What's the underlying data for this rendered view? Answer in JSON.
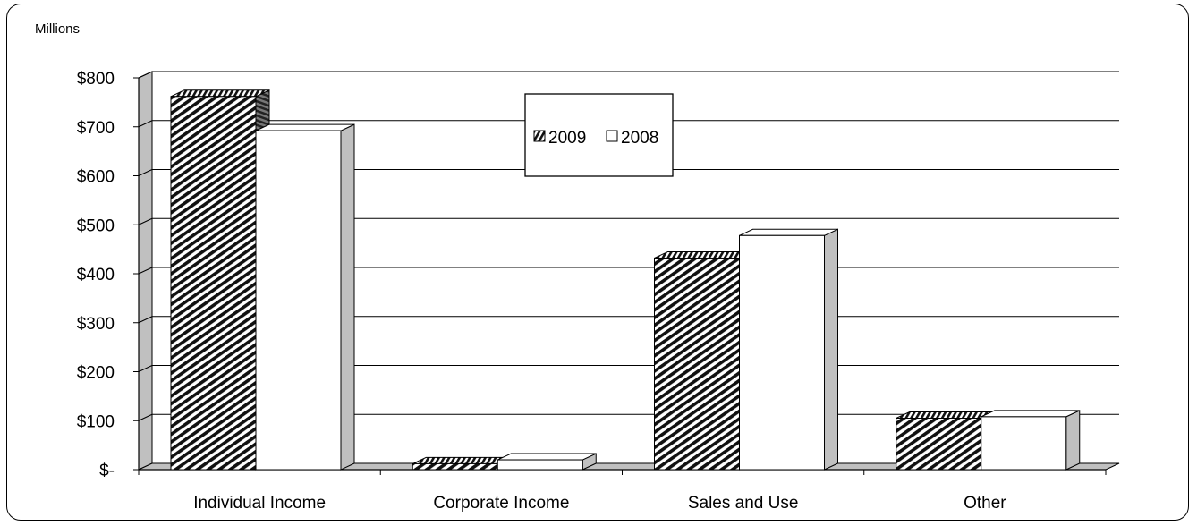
{
  "chart_data": {
    "type": "bar",
    "unit_label": "Millions",
    "categories": [
      "Individual Income",
      "Corporate Income",
      "Sales and Use",
      "Other"
    ],
    "series": [
      {
        "name": "2009",
        "values": [
          762,
          12,
          432,
          105
        ],
        "fill": "hatched"
      },
      {
        "name": "2008",
        "values": [
          692,
          20,
          478,
          108
        ],
        "fill": "#ffffff"
      }
    ],
    "ylim": [
      0,
      800
    ],
    "yticks": [
      0,
      100,
      200,
      300,
      400,
      500,
      600,
      700,
      800
    ],
    "ytick_labels": [
      "$-",
      "$100",
      "$200",
      "$300",
      "$400",
      "$500",
      "$600",
      "$700",
      "$800"
    ],
    "grid": true,
    "legend_position": "top-center",
    "colors": {
      "wall": "#c0c0c0",
      "line": "#000000",
      "hatch": "#000000"
    }
  }
}
